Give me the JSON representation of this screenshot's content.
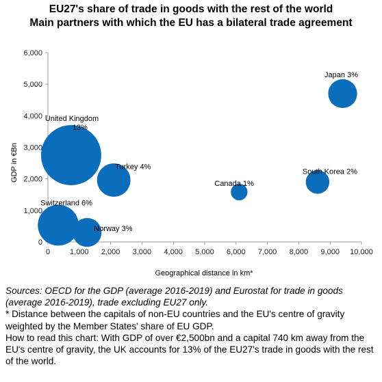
{
  "title": "EU27's share of trade in goods with the rest of the world",
  "subtitle": "Main partners with which the EU has a bilateral trade agreement",
  "notes": {
    "sources": "Sources: OECD for the GDP (average 2016-2019) and Eurostat for trade in goods (average 2016-2019), trade excluding EU27 only.",
    "footnote": "* Distance between the capitals of non-EU countries and the EU's centre of gravity weighted by the Member States' share of EU GDP.",
    "how_to_read": "How to read this chart: With GDP of over €2,500bn and a capital 740 km away from the EU's centre of gravity, the UK accounts for 13% of the EU27's trade in goods with the rest of the world."
  },
  "chart_data": {
    "type": "scatter",
    "subtype": "bubble",
    "xlabel": "Geographical distance in km*",
    "ylabel": "GDP in €Bn",
    "xlim": [
      0,
      10000
    ],
    "ylim": [
      0,
      6000
    ],
    "xticks": [
      0,
      1000,
      2000,
      3000,
      4000,
      5000,
      6000,
      7000,
      8000,
      9000,
      10000
    ],
    "xtick_labels": [
      "0",
      "1,000",
      "2,000",
      "3,000",
      "4,000",
      "5,000",
      "6,000",
      "7,000",
      "8,000",
      "9,000",
      "10,000"
    ],
    "yticks": [
      0,
      1000,
      2000,
      3000,
      4000,
      5000,
      6000
    ],
    "ytick_labels": [
      "0",
      "1,000",
      "2,000",
      "3,000",
      "4,000",
      "5,000",
      "6,000"
    ],
    "grid": false,
    "color": "#0a6ebd",
    "points": [
      {
        "label": "Japan 3%",
        "x": 9400,
        "y": 4700,
        "share": 3
      },
      {
        "label": "United Kingdom\n13%",
        "x": 740,
        "y": 2750,
        "share": 13
      },
      {
        "label": "Turkey 4%",
        "x": 2100,
        "y": 1960,
        "share": 4
      },
      {
        "label": "South Korea 2%",
        "x": 8600,
        "y": 1900,
        "share": 2
      },
      {
        "label": "Canada 1%",
        "x": 6100,
        "y": 1580,
        "share": 1
      },
      {
        "label": "Switzerland 6%",
        "x": 330,
        "y": 530,
        "share": 6
      },
      {
        "label": "Norway 3%",
        "x": 1250,
        "y": 300,
        "share": 3
      }
    ]
  }
}
